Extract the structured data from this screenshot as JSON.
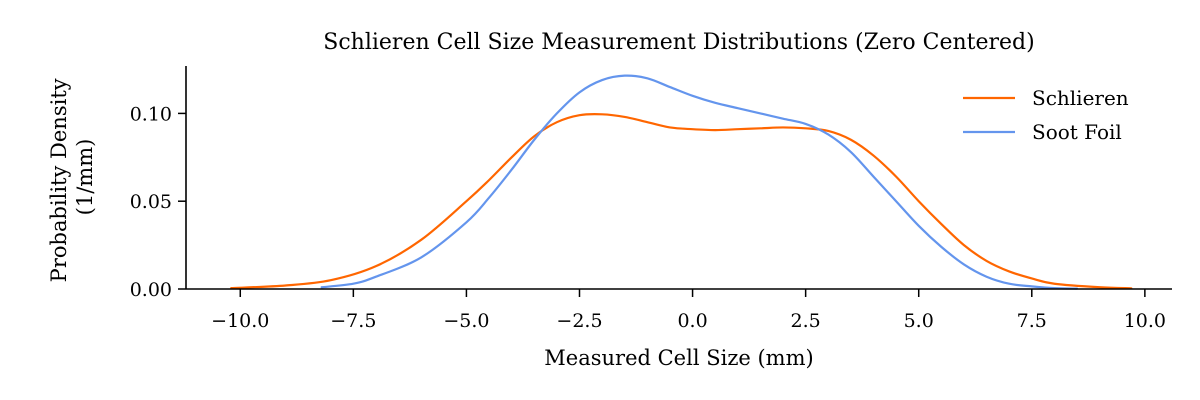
{
  "chart_data": {
    "type": "line",
    "title": "Schlieren Cell Size Measurement Distributions (Zero Centered)",
    "xlabel": "Measured Cell Size (mm)",
    "ylabel_lines": [
      "Probability Density",
      "(1/mm)"
    ],
    "xlim": [
      -11.2,
      10.6
    ],
    "ylim": [
      0,
      0.127
    ],
    "xticks": [
      {
        "value": -10.0,
        "label": "−10.0"
      },
      {
        "value": -7.5,
        "label": "−7.5"
      },
      {
        "value": -5.0,
        "label": "−5.0"
      },
      {
        "value": -2.5,
        "label": "−2.5"
      },
      {
        "value": 0.0,
        "label": "0.0"
      },
      {
        "value": 2.5,
        "label": "2.5"
      },
      {
        "value": 5.0,
        "label": "5.0"
      },
      {
        "value": 7.5,
        "label": "7.5"
      },
      {
        "value": 10.0,
        "label": "10.0"
      }
    ],
    "yticks": [
      {
        "value": 0.0,
        "label": "0.00"
      },
      {
        "value": 0.05,
        "label": "0.05"
      },
      {
        "value": 0.1,
        "label": "0.10"
      }
    ],
    "legend_position": "top-right",
    "grid": false,
    "series": [
      {
        "name": "Schlieren",
        "color": "#ff6600",
        "x": [
          -10.2,
          -9.0,
          -8.0,
          -7.0,
          -6.0,
          -5.0,
          -4.5,
          -4.0,
          -3.5,
          -3.0,
          -2.5,
          -2.0,
          -1.5,
          -1.0,
          -0.5,
          0.0,
          0.5,
          1.0,
          1.5,
          2.0,
          2.5,
          3.0,
          3.5,
          4.0,
          4.5,
          5.0,
          5.5,
          6.0,
          6.5,
          7.0,
          7.5,
          8.0,
          9.0,
          9.7
        ],
        "y": [
          0.0005,
          0.002,
          0.005,
          0.013,
          0.028,
          0.05,
          0.062,
          0.075,
          0.087,
          0.095,
          0.099,
          0.0995,
          0.098,
          0.095,
          0.092,
          0.091,
          0.0905,
          0.091,
          0.0915,
          0.092,
          0.0915,
          0.09,
          0.085,
          0.076,
          0.064,
          0.05,
          0.037,
          0.025,
          0.016,
          0.01,
          0.006,
          0.003,
          0.001,
          0.0004
        ]
      },
      {
        "name": "Soot Foil",
        "color": "#6495ed",
        "x": [
          -8.2,
          -7.5,
          -7.0,
          -6.0,
          -5.0,
          -4.5,
          -4.0,
          -3.5,
          -3.0,
          -2.5,
          -2.0,
          -1.5,
          -1.0,
          -0.5,
          0.0,
          0.5,
          1.0,
          1.5,
          2.0,
          2.5,
          3.0,
          3.5,
          4.0,
          4.5,
          5.0,
          5.5,
          6.0,
          6.5,
          7.0,
          7.5,
          8.0,
          8.5
        ],
        "y": [
          0.001,
          0.003,
          0.007,
          0.018,
          0.038,
          0.052,
          0.068,
          0.085,
          0.1,
          0.112,
          0.119,
          0.1215,
          0.12,
          0.115,
          0.11,
          0.106,
          0.103,
          0.1,
          0.097,
          0.094,
          0.088,
          0.078,
          0.064,
          0.05,
          0.036,
          0.024,
          0.014,
          0.007,
          0.003,
          0.0015,
          0.0005,
          0.0002
        ]
      }
    ]
  }
}
